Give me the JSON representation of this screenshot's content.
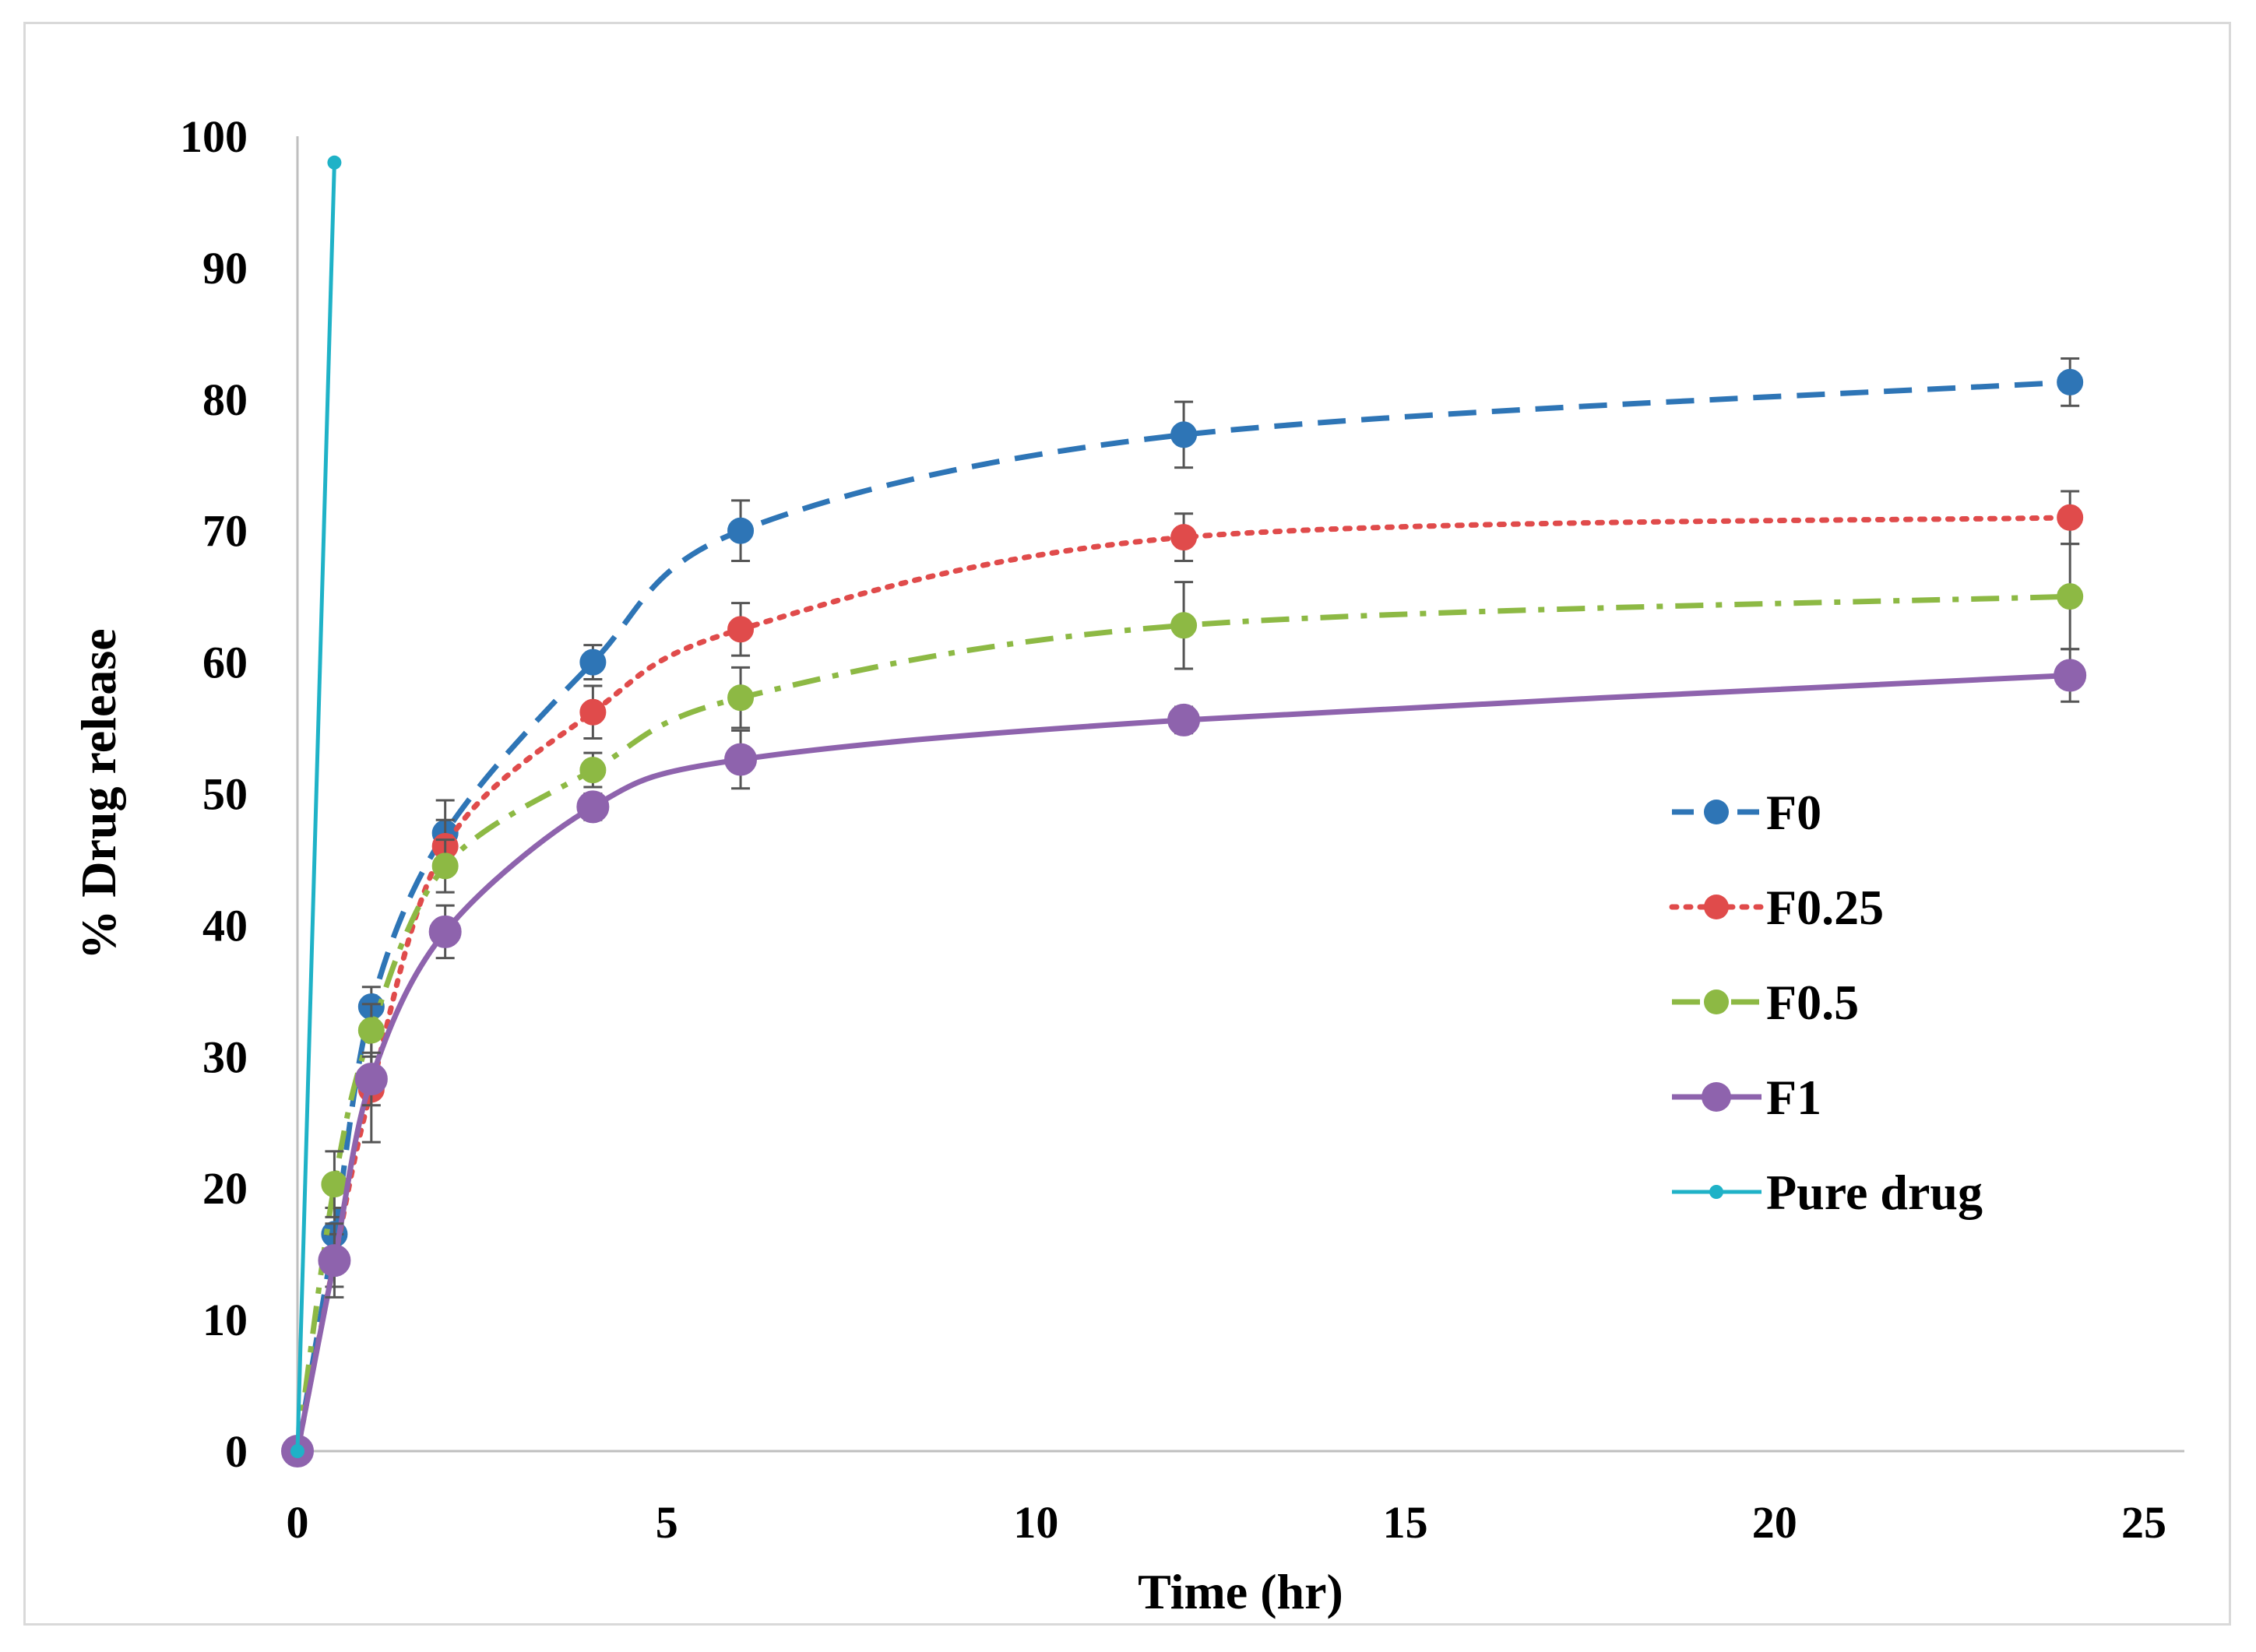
{
  "chart_data": {
    "type": "line",
    "title": "",
    "xlabel": "Time (hr)",
    "ylabel": "% Drug release",
    "xlim": [
      0,
      25
    ],
    "ylim": [
      0,
      100
    ],
    "xticks": [
      "0",
      "5",
      "10",
      "15",
      "20",
      "25"
    ],
    "yticks": [
      "0",
      "10",
      "20",
      "30",
      "40",
      "50",
      "60",
      "70",
      "80",
      "90",
      "100"
    ],
    "grid": false,
    "legend_position": "right",
    "series": [
      {
        "name": "F0",
        "color": "#2E75B6",
        "line_style": "dashed",
        "marker": "circle",
        "x": [
          0,
          0.5,
          1,
          2,
          4,
          6,
          12,
          24
        ],
        "y": [
          0,
          16.5,
          33.8,
          47.0,
          60.0,
          70.0,
          77.3,
          81.3
        ],
        "error": [
          0,
          2.0,
          1.5,
          2.5,
          1.3,
          2.3,
          2.5,
          1.8
        ]
      },
      {
        "name": "F0.25",
        "color": "#E04B4B",
        "line_style": "dotted",
        "marker": "circle",
        "x": [
          0,
          0.5,
          1,
          2,
          4,
          6,
          12,
          24
        ],
        "y": [
          0,
          14.5,
          27.5,
          46.0,
          56.2,
          62.5,
          69.5,
          71.0
        ],
        "error": [
          0,
          2.0,
          4.0,
          2.0,
          2.0,
          2.0,
          1.8,
          2.0
        ]
      },
      {
        "name": "F0.5",
        "color": "#8DB944",
        "line_style": "dash-dot",
        "marker": "circle",
        "x": [
          0,
          0.5,
          1,
          2,
          4,
          6,
          12,
          24
        ],
        "y": [
          0,
          20.3,
          32.0,
          44.5,
          51.8,
          57.3,
          62.8,
          65.0
        ],
        "error": [
          0,
          2.5,
          2.0,
          2.0,
          1.3,
          2.3,
          3.3,
          4.0
        ]
      },
      {
        "name": "F1",
        "color": "#8E63AD",
        "line_style": "solid",
        "marker": "circle",
        "x": [
          0,
          0.5,
          1,
          2,
          4,
          6,
          12,
          24
        ],
        "y": [
          0,
          14.5,
          28.3,
          39.5,
          49.0,
          52.6,
          55.6,
          59.0
        ],
        "error": [
          0,
          2.8,
          2.0,
          2.0,
          1.0,
          2.2,
          1.0,
          2.0
        ]
      },
      {
        "name": "Pure drug",
        "color": "#1FB2C7",
        "line_style": "solid",
        "marker": "small-circle",
        "x": [
          0,
          0.5
        ],
        "y": [
          0,
          98.0
        ],
        "error": [
          0,
          0
        ]
      }
    ]
  }
}
